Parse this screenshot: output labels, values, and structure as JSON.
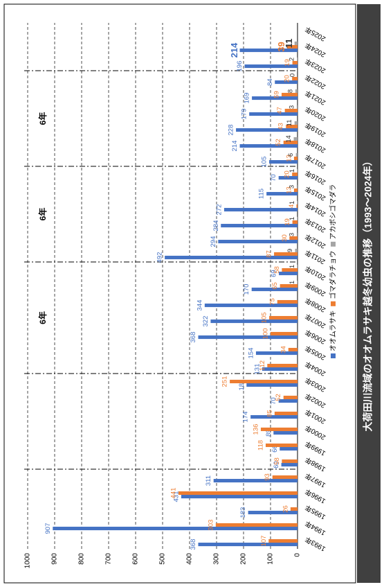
{
  "chart_data": {
    "type": "bar",
    "title": "大荷田川流域のオオムラサキ越冬幼虫の推移（1993～2024年）",
    "categories": [
      "1993年",
      "1994年",
      "1995年",
      "1996年",
      "1997年",
      "1998年",
      "1999年",
      "2000年",
      "2001年",
      "2002年",
      "2003年",
      "2004年",
      "2005年",
      "2006年",
      "2007年",
      "2008年",
      "2009年",
      "2010年",
      "2011年",
      "2012年",
      "2013年",
      "2014年",
      "2015年",
      "2016年",
      "2017年",
      "2018年",
      "2019年",
      "2020年",
      "2021年",
      "2022年",
      "2023年",
      "2024年",
      "2025年"
    ],
    "series": [
      {
        "name": "オオムラサキ",
        "color": "#4472c4",
        "values": [
          368,
          907,
          183,
          431,
          311,
          60,
          66,
          89,
          174,
          70,
          189,
          131,
          154,
          368,
          322,
          344,
          170,
          69,
          492,
          294,
          284,
          272,
          115,
          70,
          105,
          214,
          228,
          179,
          169,
          84,
          196,
          214,
          null
        ]
      },
      {
        "name": "ゴマダラチョウ",
        "color": "#ed7d31",
        "values": [
          107,
          303,
          26,
          441,
          93,
          58,
          118,
          136,
          85,
          52,
          251,
          112,
          34,
          100,
          105,
          75,
          65,
          58,
          87,
          30,
          19,
          4,
          13,
          20,
          13,
          52,
          43,
          47,
          59,
          20,
          19,
          39,
          null
        ]
      },
      {
        "name": "アカボシゴマダラ",
        "color": "#a5a5a5",
        "values": [
          null,
          null,
          null,
          null,
          null,
          null,
          null,
          null,
          null,
          null,
          null,
          null,
          null,
          null,
          null,
          null,
          1,
          1,
          9,
          3,
          1,
          1,
          3,
          1,
          6,
          14,
          11,
          3,
          8,
          0,
          2,
          11,
          null
        ]
      }
    ],
    "ylim": [
      0,
      1000
    ],
    "yticks": [
      0,
      100,
      200,
      300,
      400,
      500,
      600,
      700,
      800,
      900,
      1000
    ],
    "grid": true,
    "legend": "bottom",
    "annotations": [
      "6年",
      "6年",
      "6年"
    ]
  }
}
